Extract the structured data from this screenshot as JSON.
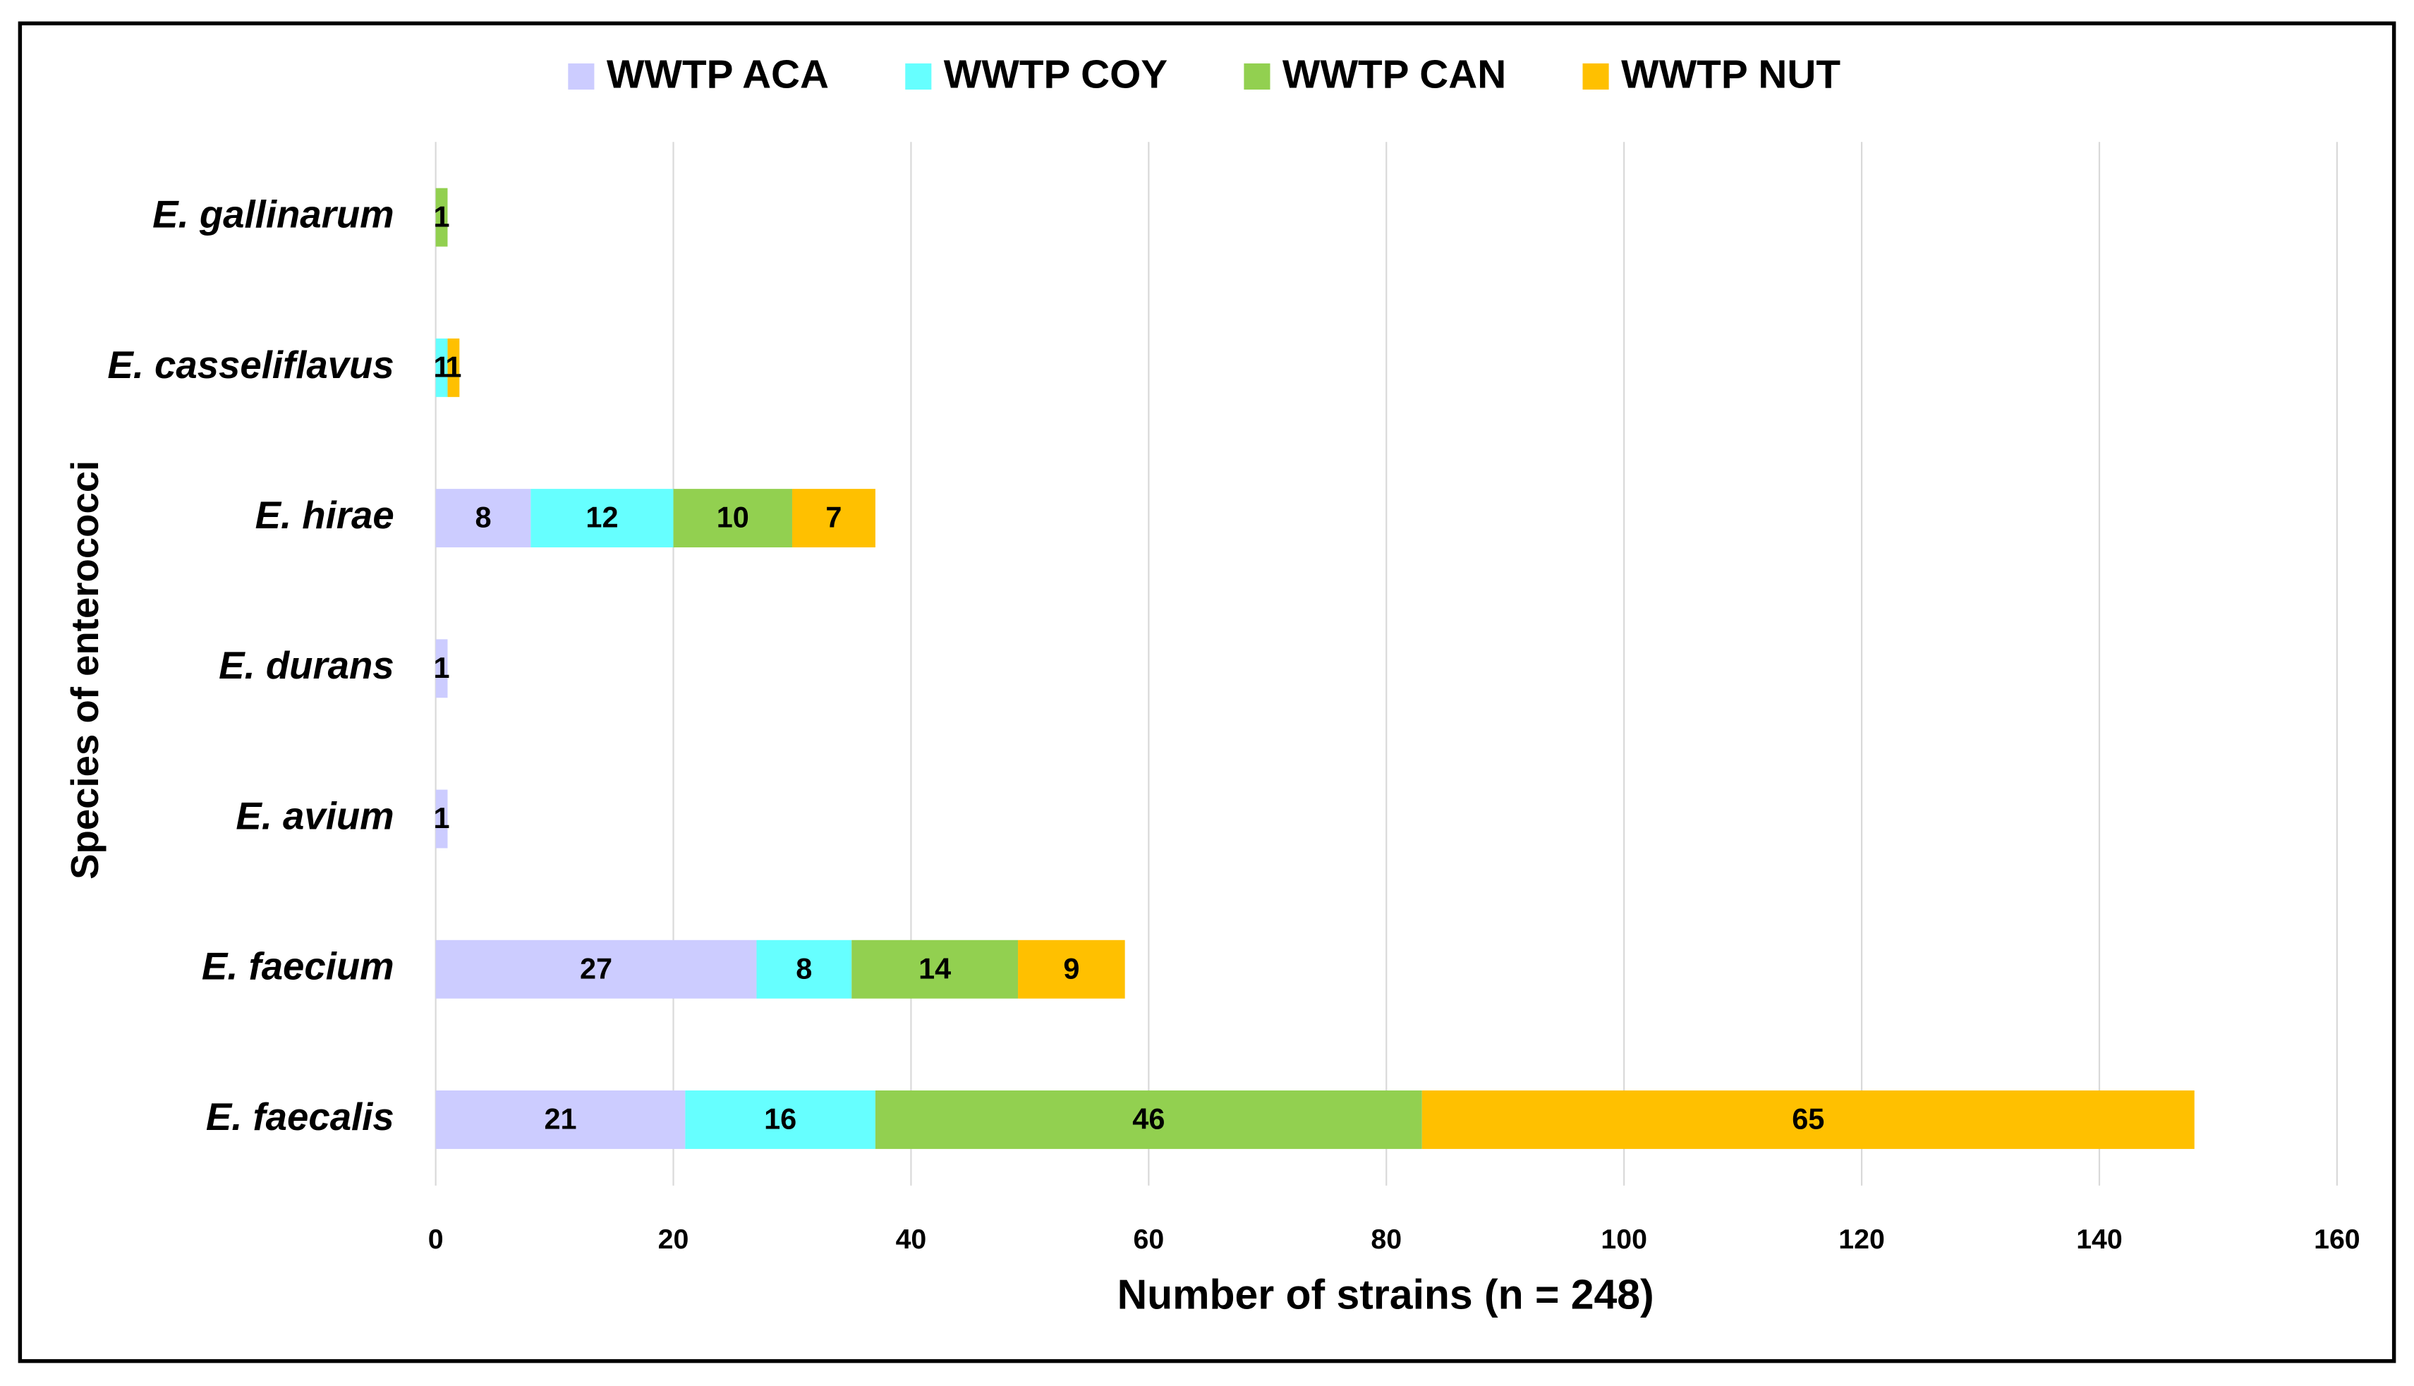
{
  "chart_data": {
    "type": "stacked-bar-horizontal",
    "x_label": "Number of strains (n = 248)",
    "y_label": "Species of enterococci",
    "categories": [
      "E. gallinarum",
      "E. casseliflavus",
      "E. hirae",
      "E. durans",
      "E. avium",
      "E. faecium",
      "E. faecalis"
    ],
    "series": [
      {
        "name": "WWTP ACA",
        "color": "#ccccff",
        "values": [
          null,
          null,
          8,
          1,
          1,
          27,
          21
        ]
      },
      {
        "name": "WWTP COY",
        "color": "#66ffff",
        "values": [
          null,
          1,
          12,
          null,
          null,
          8,
          16
        ]
      },
      {
        "name": "WWTP CAN",
        "color": "#92d050",
        "values": [
          1,
          null,
          10,
          null,
          null,
          14,
          46
        ]
      },
      {
        "name": "WWTP NUT",
        "color": "#ffc000",
        "values": [
          null,
          1,
          7,
          null,
          null,
          9,
          65
        ]
      }
    ],
    "xlim": [
      0,
      160
    ],
    "xticks": [
      0,
      20,
      40,
      60,
      80,
      100,
      120,
      140,
      160
    ],
    "grid": true,
    "legend": "top"
  }
}
